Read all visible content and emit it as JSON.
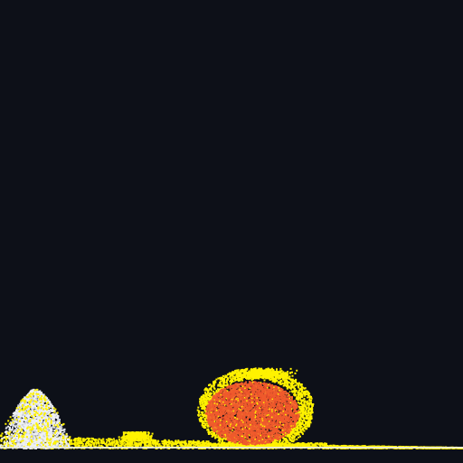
{
  "scene": {
    "background_color": "#0d1018",
    "floor_color": "#e8eaee",
    "materials": [
      {
        "name": "sand",
        "color": "#fff200"
      },
      {
        "name": "snow",
        "color": "#eef0f4"
      },
      {
        "name": "fire",
        "color": "#ef5a2c"
      }
    ],
    "piles": [
      {
        "material": "snow",
        "shape": "mound"
      },
      {
        "material": "sand",
        "shape": "layer"
      },
      {
        "material": "fire",
        "shape": "blob",
        "surrounded_by": "sand"
      }
    ]
  }
}
